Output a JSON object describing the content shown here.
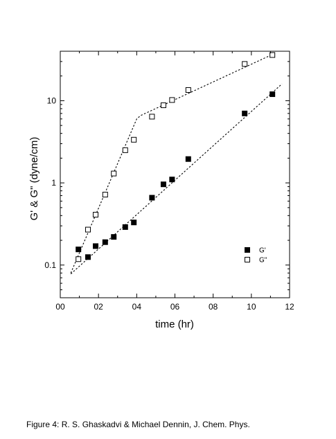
{
  "chart_data": {
    "type": "scatter",
    "xlabel": "time (hr)",
    "ylabel": "G' & G\" (dyne/cm)",
    "xlim": [
      0,
      12
    ],
    "ylim": [
      0.04,
      40
    ],
    "yscale": "log",
    "x_tick_values": [
      0,
      2,
      4,
      6,
      8,
      10,
      12
    ],
    "x_tick_labels": [
      "00",
      "02",
      "04",
      "06",
      "08",
      "10",
      "12"
    ],
    "y_tick_values": [
      0.1,
      1,
      10
    ],
    "y_tick_labels": [
      "0.1",
      "1",
      "10"
    ],
    "legend_position": "bottom-right",
    "grid": false,
    "series": [
      {
        "name": "G'",
        "marker": "filled-square",
        "color": "#000000",
        "x": [
          0.95,
          1.45,
          1.85,
          2.35,
          2.8,
          3.4,
          3.85,
          4.8,
          5.4,
          5.85,
          6.7,
          9.65,
          11.1
        ],
        "y": [
          0.155,
          0.125,
          0.17,
          0.19,
          0.22,
          0.29,
          0.33,
          0.66,
          0.96,
          1.1,
          1.95,
          7.0,
          12.0
        ]
      },
      {
        "name": "G\"",
        "marker": "open-square",
        "color": "#000000",
        "x": [
          0.95,
          1.45,
          1.85,
          2.35,
          2.8,
          3.4,
          3.85,
          4.8,
          5.4,
          5.85,
          6.7,
          9.65,
          11.1
        ],
        "y": [
          0.118,
          0.27,
          0.41,
          0.72,
          1.3,
          2.5,
          3.35,
          6.4,
          8.8,
          10.2,
          13.5,
          28.0,
          36.0
        ]
      }
    ],
    "fit_lines": [
      {
        "x": [
          0.55,
          11.6
        ],
        "y": [
          0.078,
          16.0
        ]
      },
      {
        "x": [
          0.55,
          4.0,
          4.2,
          11.15
        ],
        "y": [
          0.08,
          6.0,
          6.6,
          37.0
        ]
      }
    ]
  },
  "caption": "Figure 4: R. S. Ghaskadvi & Michael Dennin, J. Chem. Phys."
}
